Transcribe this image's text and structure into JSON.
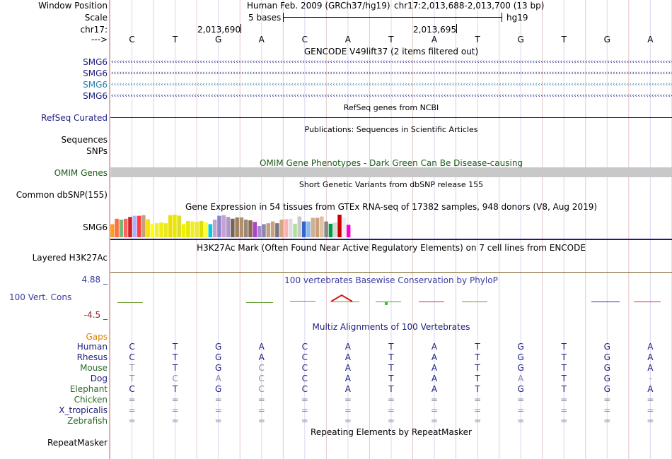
{
  "header": {
    "window_position_label": "Window Position",
    "assembly_text": "Human Feb. 2009 (GRCh37/hg19)",
    "position_text": "chr17:2,013,688-2,013,700 (13 bp)",
    "scale_label": "Scale",
    "scale_value": "5 bases",
    "scale_db": "hg19",
    "chrom_label": "chr17:",
    "coord1": "2,013,690",
    "coord2": "2,013,695",
    "strand_label": "--->"
  },
  "bases": [
    "C",
    "T",
    "G",
    "A",
    "C",
    "A",
    "T",
    "A",
    "T",
    "G",
    "T",
    "G",
    "A"
  ],
  "tracks": {
    "gencode_title": "GENCODE V49lift37 (2 items filtered out)",
    "gencode_items": [
      {
        "label": "SMG6",
        "color": "#1c1c7c"
      },
      {
        "label": "SMG6",
        "color": "#1c1c7c"
      },
      {
        "label": "SMG6",
        "color": "#2a7fa8"
      },
      {
        "label": "SMG6",
        "color": "#1c1c7c"
      }
    ],
    "refseq_title": "RefSeq genes from NCBI",
    "refseq_label": "RefSeq Curated",
    "pubs_title": "Publications: Sequences in Scientific Articles",
    "sequences_label": "Sequences",
    "snps_label": "SNPs",
    "omim_title": "OMIM Gene Phenotypes - Dark Green Can Be Disease-causing",
    "omim_label": "OMIM Genes",
    "dbsnp_title": "Short Genetic Variants from dbSNP release 155",
    "dbsnp_label": "Common dbSNP(155)",
    "gtex_title": "Gene Expression in 54 tissues from GTEx RNA-seq of 17382 samples, 948 donors (V8, Aug 2019)",
    "gtex_label": "SMG6",
    "h3k27ac_title": "H3K27Ac Mark (Often Found Near Active Regulatory Elements) on 7 cell lines from ENCODE",
    "h3k27ac_label": "Layered H3K27Ac",
    "phylop_title": "100 vertebrates Basewise Conservation by PhyloP",
    "phylop_max": "4.88 _",
    "phylop_label": "100 Vert. Cons",
    "phylop_min": "-4.5 _",
    "multiz_title": "Multiz Alignments of 100 Vertebrates",
    "gaps_label": "Gaps",
    "repeat_title": "Repeating Elements by RepeatMasker",
    "repeat_label": "RepeatMasker"
  },
  "gtex_values": [
    0.58,
    0.82,
    0.78,
    0.82,
    0.9,
    0.95,
    0.95,
    0.98,
    0.8,
    0.58,
    0.62,
    0.65,
    0.62,
    0.98,
    1.0,
    0.96,
    0.58,
    0.72,
    0.7,
    0.68,
    0.72,
    0.66,
    0.58,
    0.78,
    0.95,
    0.98,
    0.9,
    0.82,
    0.88,
    0.88,
    0.78,
    0.75,
    0.68,
    0.5,
    0.58,
    0.62,
    0.7,
    0.62,
    0.78,
    0.8,
    0.82,
    0.6,
    0.92,
    0.7,
    0.7,
    0.86,
    0.86,
    0.92,
    0.7,
    0.6,
    0.65,
    1.0,
    0.88,
    0.55
  ],
  "gtex_colors": [
    "#ff9b20",
    "#ff7040",
    "#7ab87a",
    "#ff6060",
    "#d02020",
    "#b0b0ff",
    "#ff4040",
    "#c8a080",
    "#ffdd00",
    "#ffff00",
    "#f0f030",
    "#eeee10",
    "#e8e820",
    "#f0e000",
    "#e8e800",
    "#dddd30",
    "#f0f000",
    "#e8e800",
    "#f0f020",
    "#e8e840",
    "#e0e000",
    "#ffff30",
    "#00ccdd",
    "#c8a0c8",
    "#8888cc",
    "#cca0cc",
    "#aa99cc",
    "#776655",
    "#a08060",
    "#b09070",
    "#998877",
    "#8a6a50",
    "#aa44cc",
    "#aa88cc",
    "#8888aa",
    "#c0a080",
    "#c8a080",
    "#777788",
    "#d4a880",
    "#ffb0b0",
    "#dddddd",
    "#b0e0a0",
    "#c8c8c8",
    "#3366cc",
    "#88bbee",
    "#d0b090",
    "#c8a080",
    "#e0c0a0",
    "#888888",
    "#009944",
    "#d8d8d8",
    "#cc0000",
    "#eeeeee",
    "#ff00cc"
  ],
  "alignments": [
    {
      "species": "Human",
      "color": "#1c1c7c",
      "bases": [
        "C",
        "T",
        "G",
        "A",
        "C",
        "A",
        "T",
        "A",
        "T",
        "G",
        "T",
        "G",
        "A"
      ],
      "dim": [
        0,
        0,
        0,
        0,
        0,
        0,
        0,
        0,
        0,
        0,
        0,
        0,
        0
      ]
    },
    {
      "species": "Rhesus",
      "color": "#1c1c7c",
      "bases": [
        "C",
        "T",
        "G",
        "A",
        "C",
        "A",
        "T",
        "A",
        "T",
        "G",
        "T",
        "G",
        "A"
      ],
      "dim": [
        0,
        0,
        0,
        0,
        0,
        0,
        0,
        0,
        0,
        0,
        0,
        0,
        0
      ]
    },
    {
      "species": "Mouse",
      "color": "#2a6a2a",
      "bases": [
        "T",
        "T",
        "G",
        "C",
        "C",
        "A",
        "T",
        "A",
        "T",
        "G",
        "T",
        "G",
        "A"
      ],
      "dim": [
        1,
        0,
        0,
        1,
        0,
        0,
        0,
        0,
        0,
        0,
        0,
        0,
        0
      ]
    },
    {
      "species": "Dog",
      "color": "#1c1c7c",
      "bases": [
        "T",
        "C",
        "A",
        "C",
        "C",
        "A",
        "T",
        "A",
        "T",
        "A",
        "T",
        "G",
        "-"
      ],
      "dim": [
        1,
        1,
        1,
        1,
        0,
        0,
        0,
        0,
        0,
        1,
        0,
        0,
        1
      ]
    },
    {
      "species": "Elephant",
      "color": "#2a6a2a",
      "bases": [
        "C",
        "T",
        "G",
        "C",
        "C",
        "A",
        "T",
        "A",
        "T",
        "G",
        "T",
        "G",
        "A"
      ],
      "dim": [
        0,
        0,
        0,
        1,
        0,
        0,
        0,
        0,
        0,
        0,
        0,
        0,
        0
      ]
    },
    {
      "species": "Chicken",
      "color": "#2a6a2a",
      "bases": [
        "=",
        "=",
        "=",
        "=",
        "=",
        "=",
        "=",
        "=",
        "=",
        "=",
        "=",
        "=",
        "="
      ],
      "dim": [
        1,
        1,
        1,
        1,
        1,
        1,
        1,
        1,
        1,
        1,
        1,
        1,
        1
      ]
    },
    {
      "species": "X_tropicalis",
      "color": "#1c1c7c",
      "bases": [
        "=",
        "=",
        "=",
        "=",
        "=",
        "=",
        "=",
        "=",
        "=",
        "=",
        "=",
        "=",
        "="
      ],
      "dim": [
        1,
        1,
        1,
        1,
        1,
        1,
        1,
        1,
        1,
        1,
        1,
        1,
        1
      ]
    },
    {
      "species": "Zebrafish",
      "color": "#2a6a2a",
      "bases": [
        "=",
        "=",
        "=",
        "=",
        "=",
        "=",
        "=",
        "=",
        "=",
        "=",
        "=",
        "=",
        "="
      ],
      "dim": [
        1,
        1,
        1,
        1,
        1,
        1,
        1,
        1,
        1,
        1,
        1,
        1,
        1
      ]
    }
  ],
  "colors": {
    "track_label_blue": "#1c1c7c",
    "omim_green": "#1a5a1a",
    "phylop_blue": "#3a3aa0",
    "phylop_red": "#8a2020",
    "gaps_orange": "#e08000",
    "omim_bar": "#c8c8c8",
    "refseq_line": "#1c1c7c"
  }
}
